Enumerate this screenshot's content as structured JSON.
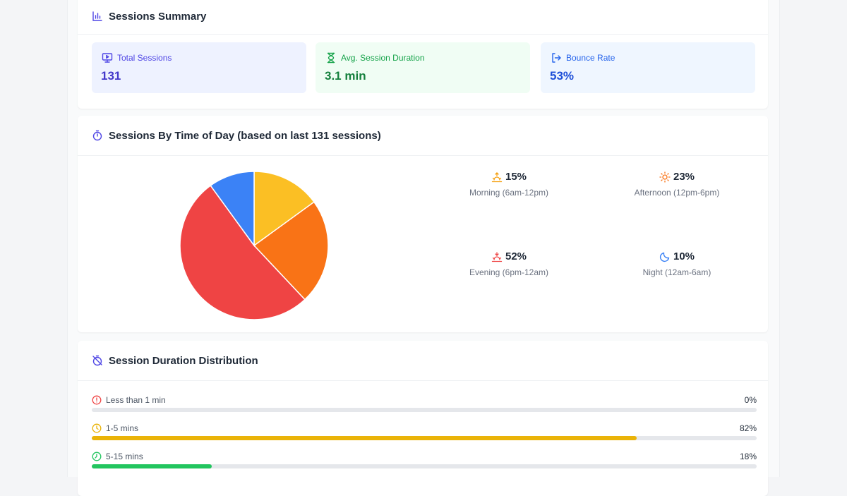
{
  "summary": {
    "title": "Sessions Summary",
    "stats": [
      {
        "label": "Total Sessions",
        "value": "131",
        "icon": "monitor-play-icon",
        "bg": "#eef2ff",
        "fg": "#4f46e5"
      },
      {
        "label": "Avg. Session Duration",
        "value": "3.1 min",
        "icon": "hourglass-icon",
        "bg": "#f0fdf4",
        "fg": "#16a34a"
      },
      {
        "label": "Bounce Rate",
        "value": "53%",
        "icon": "log-out-icon",
        "bg": "#eff6ff",
        "fg": "#2563eb"
      }
    ]
  },
  "time_of_day": {
    "title": "Sessions By Time of Day (based on last 131 sessions)",
    "items": [
      {
        "pct": "15%",
        "caption": "Morning (6am-12pm)",
        "icon": "sunrise-icon",
        "color": "#f59e0b"
      },
      {
        "pct": "23%",
        "caption": "Afternoon (12pm-6pm)",
        "icon": "sun-icon",
        "color": "#f97316"
      },
      {
        "pct": "52%",
        "caption": "Evening (6pm-12am)",
        "icon": "sunset-icon",
        "color": "#ef4444"
      },
      {
        "pct": "10%",
        "caption": "Night (12am-6am)",
        "icon": "moon-icon",
        "color": "#3b82f6"
      }
    ]
  },
  "chart_data": {
    "type": "pie",
    "categories": [
      "Morning (6am-12pm)",
      "Afternoon (12pm-6pm)",
      "Evening (6pm-12am)",
      "Night (12am-6am)"
    ],
    "values": [
      15,
      23,
      52,
      10
    ],
    "colors": [
      "#fbbf24",
      "#f97316",
      "#ef4444",
      "#3b82f6"
    ]
  },
  "distribution": {
    "title": "Session Duration Distribution",
    "rows": [
      {
        "label": "Less than 1 min",
        "value": "0%",
        "fraction": 0.0,
        "color": "#ef4444",
        "icon": "alert-circle-icon"
      },
      {
        "label": "1-5 mins",
        "value": "82%",
        "fraction": 0.82,
        "color": "#eab308",
        "icon": "clock-icon"
      },
      {
        "label": "5-15 mins",
        "value": "18%",
        "fraction": 0.18,
        "color": "#22c55e",
        "icon": "check-clock-icon"
      }
    ]
  }
}
